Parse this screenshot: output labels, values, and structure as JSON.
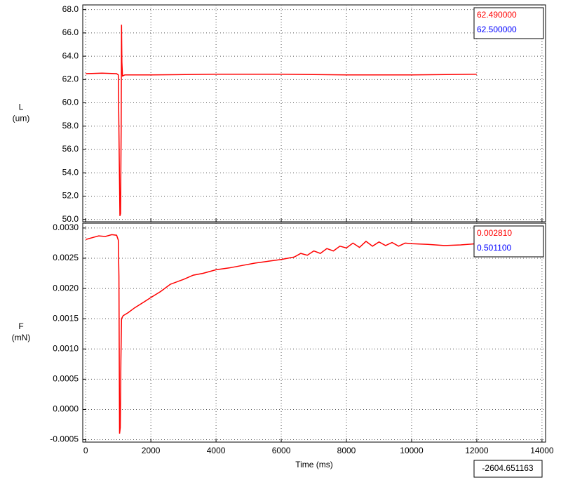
{
  "chart_data": [
    {
      "type": "line",
      "ylabel": "L",
      "yunit": "(um)",
      "x": [
        0,
        500,
        950,
        1000,
        1030,
        1050,
        1070,
        1090,
        1100,
        1110,
        1130,
        1200,
        2000,
        4000,
        6000,
        8000,
        10000,
        12000
      ],
      "series": [
        {
          "color": "#ff0000",
          "values": [
            62.5,
            62.55,
            62.5,
            62.4,
            55,
            50.3,
            50.5,
            58,
            66.7,
            63.5,
            62.3,
            62.4,
            62.4,
            62.45,
            62.45,
            62.4,
            62.4,
            62.45
          ]
        }
      ],
      "xlim": [
        -90,
        14110
      ],
      "xticks": [
        0,
        2000,
        4000,
        6000,
        8000,
        10000,
        12000,
        14000
      ],
      "ylim": [
        49.8,
        68.4
      ],
      "yticks": [
        {
          "value": 50,
          "label": "50.0"
        },
        {
          "value": 52,
          "label": "52.0"
        },
        {
          "value": 54,
          "label": "54.0"
        },
        {
          "value": 56,
          "label": "56.0"
        },
        {
          "value": 58,
          "label": "58.0"
        },
        {
          "value": 60,
          "label": "60.0"
        },
        {
          "value": 62,
          "label": "62.0"
        },
        {
          "value": 64,
          "label": "64.0"
        },
        {
          "value": 66,
          "label": "66.0"
        },
        {
          "value": 68,
          "label": "68.0"
        }
      ],
      "grid": true,
      "readouts": [
        {
          "text": "62.490000",
          "color": "#ff0000"
        },
        {
          "text": "62.500000",
          "color": "#0000ff"
        }
      ]
    },
    {
      "type": "line",
      "ylabel": "F",
      "yunit": "(mN)",
      "xlabel": "Time (ms)",
      "cursor_readout": "-2604.651163",
      "x": [
        0,
        200,
        400,
        600,
        800,
        950,
        1000,
        1020,
        1040,
        1060,
        1080,
        1100,
        1150,
        1300,
        1500,
        1800,
        2000,
        2300,
        2600,
        3000,
        3300,
        3600,
        4000,
        4400,
        4800,
        5200,
        5600,
        6000,
        6400,
        6600,
        6800,
        7000,
        7200,
        7400,
        7600,
        7800,
        8000,
        8200,
        8400,
        8600,
        8800,
        9000,
        9200,
        9400,
        9600,
        9800,
        10000,
        10500,
        11000,
        11500,
        12000
      ],
      "series": [
        {
          "color": "#ff0000",
          "values": [
            0.00281,
            0.00284,
            0.00287,
            0.00286,
            0.00289,
            0.00288,
            0.0028,
            0.0022,
            -0.0004,
            -0.0003,
            0.0008,
            0.0015,
            0.00155,
            0.0016,
            0.00168,
            0.00178,
            0.00185,
            0.00195,
            0.00207,
            0.00215,
            0.00222,
            0.00225,
            0.00231,
            0.00234,
            0.00238,
            0.00242,
            0.00245,
            0.00248,
            0.00252,
            0.00258,
            0.00255,
            0.00262,
            0.00258,
            0.00266,
            0.00262,
            0.0027,
            0.00267,
            0.00275,
            0.00268,
            0.00278,
            0.0027,
            0.00277,
            0.00271,
            0.00276,
            0.0027,
            0.00275,
            0.00274,
            0.00273,
            0.00271,
            0.00272,
            0.00274
          ]
        }
      ],
      "xlim": [
        -90,
        14110
      ],
      "xticks": [
        0,
        2000,
        4000,
        6000,
        8000,
        10000,
        12000,
        14000
      ],
      "ylim": [
        -0.00054,
        0.00308
      ],
      "yticks": [
        {
          "value": -0.0005,
          "label": "-0.0005"
        },
        {
          "value": 0,
          "label": "0.0000"
        },
        {
          "value": 0.0005,
          "label": "0.0005"
        },
        {
          "value": 0.001,
          "label": "0.0010"
        },
        {
          "value": 0.0015,
          "label": "0.0015"
        },
        {
          "value": 0.002,
          "label": "0.0020"
        },
        {
          "value": 0.0025,
          "label": "0.0025"
        },
        {
          "value": 0.003,
          "label": "0.0030"
        }
      ],
      "grid": true,
      "readouts": [
        {
          "text": "0.002810",
          "color": "#ff0000"
        },
        {
          "text": "0.501100",
          "color": "#0000ff"
        }
      ]
    }
  ]
}
